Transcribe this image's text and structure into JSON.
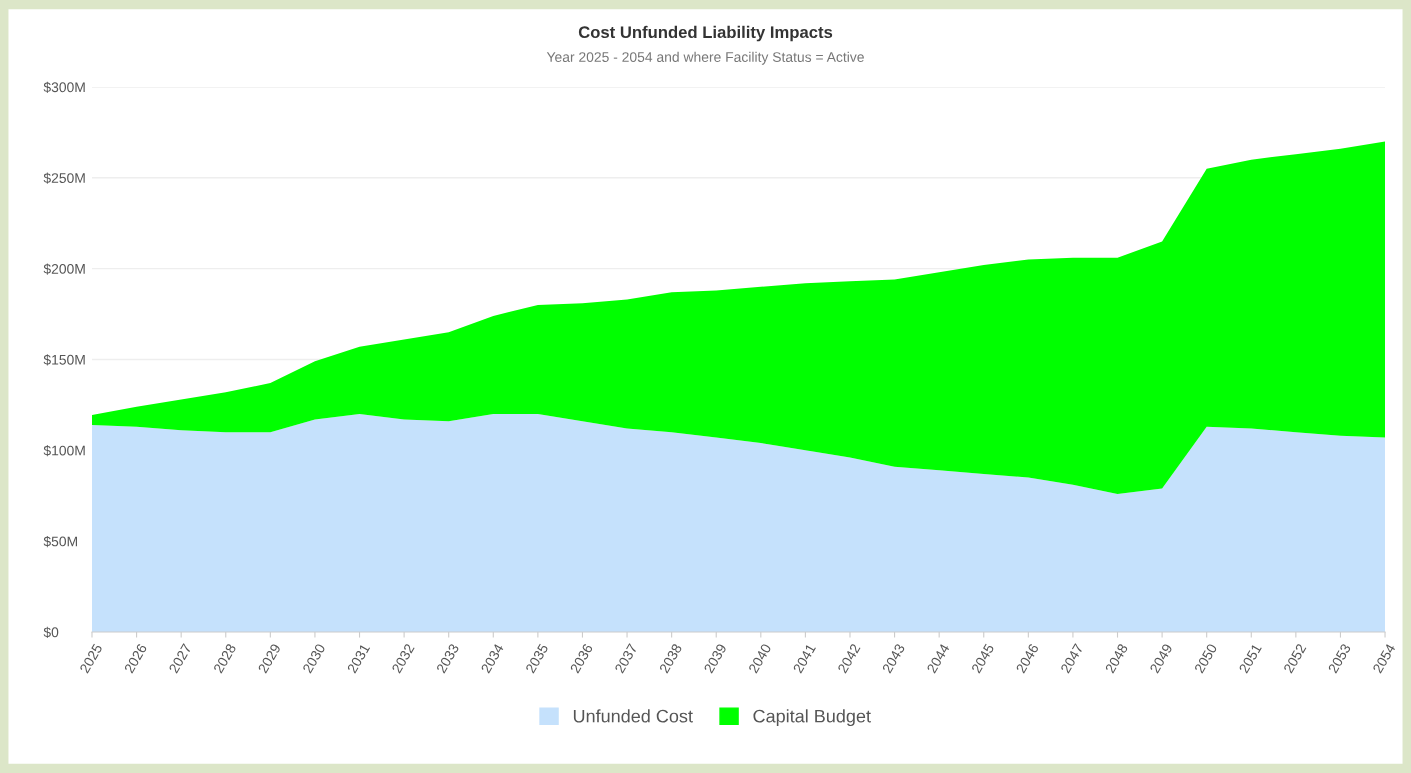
{
  "chart_data": {
    "type": "area",
    "title": "Cost Unfunded Liability Impacts",
    "subtitle": "Year 2025 - 2054 and where Facility Status = Active",
    "categories": [
      "2025",
      "2026",
      "2027",
      "2028",
      "2029",
      "2030",
      "2031",
      "2032",
      "2033",
      "2034",
      "2035",
      "2036",
      "2037",
      "2038",
      "2039",
      "2040",
      "2041",
      "2042",
      "2043",
      "2044",
      "2045",
      "2046",
      "2047",
      "2048",
      "2049",
      "2050",
      "2051",
      "2052",
      "2053",
      "2054"
    ],
    "stacked": true,
    "series": [
      {
        "name": "Unfunded Cost",
        "color": "#c5e1fc",
        "values": [
          114,
          113,
          111,
          110,
          110,
          117,
          120,
          117,
          116,
          120,
          120,
          116,
          112,
          110,
          107,
          104,
          100,
          96,
          91,
          89,
          87,
          85,
          81,
          76,
          79,
          113,
          112,
          110,
          108,
          107
        ]
      },
      {
        "name": "Capital Budget",
        "color": "#00ff00",
        "values": [
          5.5,
          11,
          17,
          22,
          27,
          32,
          37,
          44,
          49,
          54,
          60,
          65,
          71,
          77,
          81,
          86,
          92,
          97,
          103,
          109,
          115,
          120,
          125,
          130,
          136,
          142,
          148,
          153,
          158,
          163
        ]
      }
    ],
    "ylim": [
      0,
      300
    ],
    "yticks": [
      {
        "value": 0,
        "label": "$0"
      },
      {
        "value": 50,
        "label": "$50M"
      },
      {
        "value": 100,
        "label": "$100M"
      },
      {
        "value": 150,
        "label": "$150M"
      },
      {
        "value": 200,
        "label": "$200M"
      },
      {
        "value": 250,
        "label": "$250M"
      },
      {
        "value": 300,
        "label": "$300M"
      }
    ],
    "grid": "y",
    "legend": "bottom"
  }
}
